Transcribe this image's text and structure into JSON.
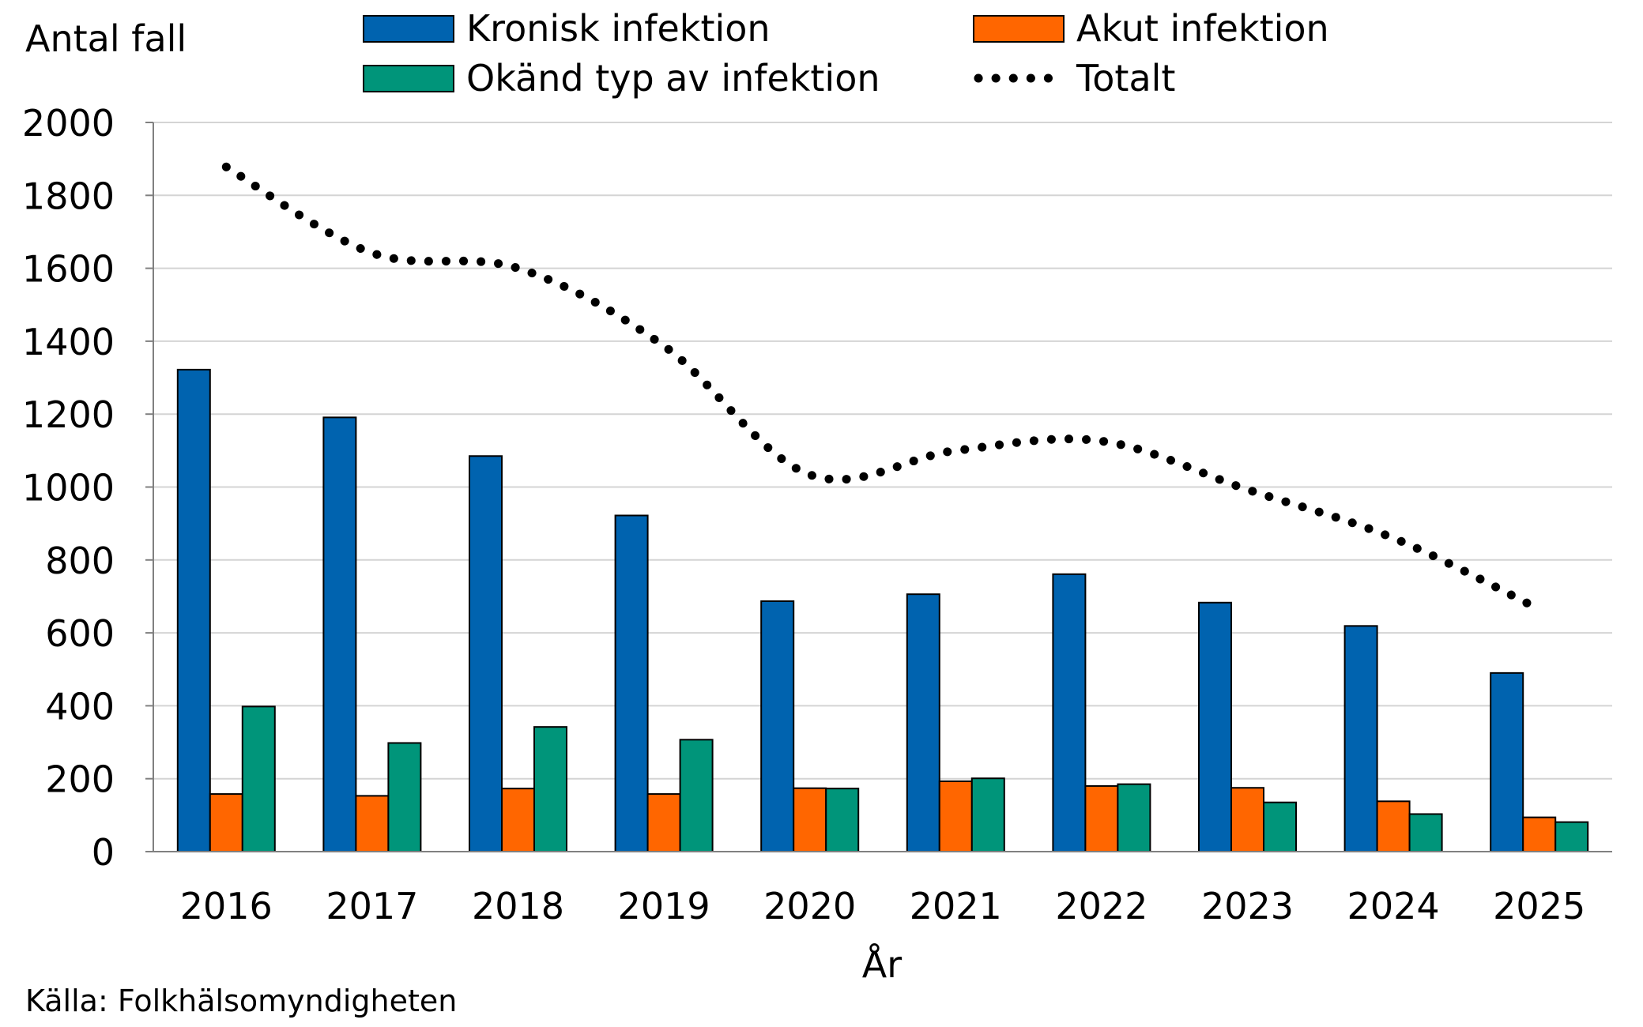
{
  "chart_data": {
    "type": "bar",
    "ylabel": "Antal fall",
    "xlabel": "År",
    "ylim": [
      0,
      2000
    ],
    "yticks": [
      0,
      200,
      400,
      600,
      800,
      1000,
      1200,
      1400,
      1600,
      1800,
      2000
    ],
    "grid": true,
    "legend_position": "top",
    "categories": [
      "2016",
      "2017",
      "2018",
      "2019",
      "2020",
      "2021",
      "2022",
      "2023",
      "2024",
      "2025"
    ],
    "series": [
      {
        "name": "Kronisk infektion",
        "type": "bar",
        "color": "#0063AF",
        "values": [
          1322,
          1191,
          1085,
          922,
          687,
          706,
          761,
          683,
          619,
          490
        ]
      },
      {
        "name": "Akut infektion",
        "type": "bar",
        "color": "#FF6600",
        "values": [
          158,
          153,
          173,
          158,
          174,
          193,
          180,
          175,
          138,
          94
        ]
      },
      {
        "name": "Okänd typ av infektion",
        "type": "bar",
        "color": "#00957A",
        "values": [
          398,
          298,
          342,
          307,
          173,
          201,
          185,
          135,
          103,
          81
        ]
      },
      {
        "name": "Totalt",
        "type": "line",
        "style": "dotted",
        "color": "#000000",
        "values": [
          1878,
          1642,
          1600,
          1387,
          1034,
          1100,
          1126,
          993,
          860,
          665
        ]
      }
    ]
  },
  "source": "Källa: Folkhälsomyndigheten"
}
